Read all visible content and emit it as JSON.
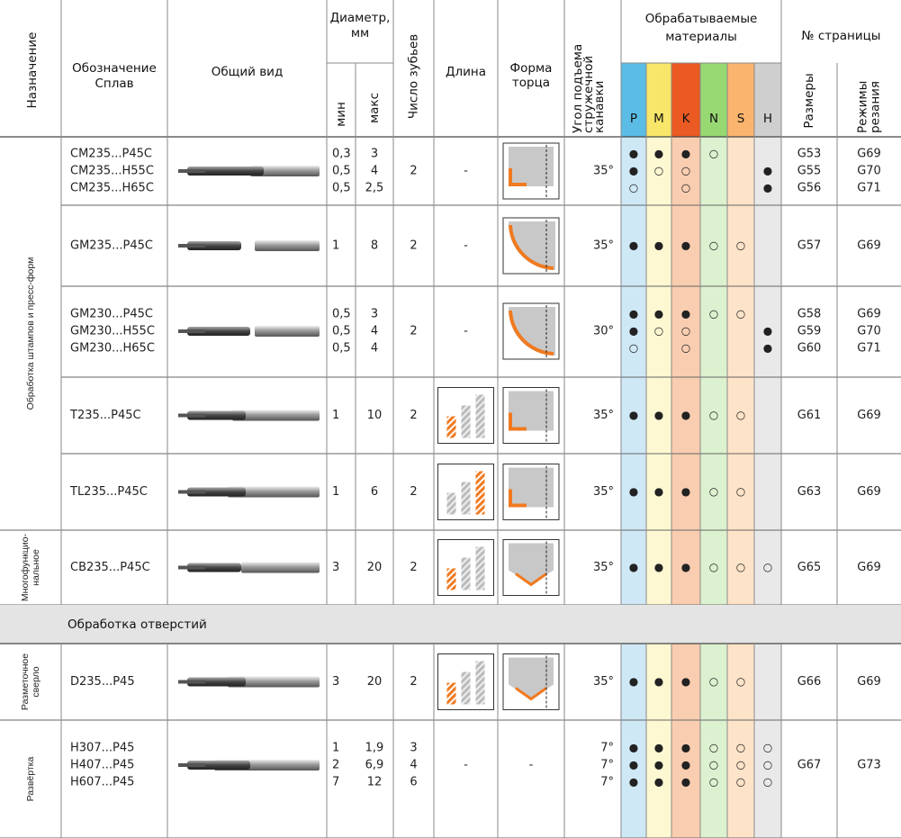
{
  "header": {
    "purpose": "Назначение",
    "designation": [
      "Обозначение",
      "Сплав"
    ],
    "view": "Общий вид",
    "diameter": [
      "Диаметр,",
      "мм"
    ],
    "d_min": "мин",
    "d_max": "макс",
    "teeth": "Число зубьев",
    "length": "Длина",
    "end_form": [
      "Форма",
      "торца"
    ],
    "helix": [
      "Угол подъема",
      "стружечной",
      "канавки"
    ],
    "materials": [
      "Обрабатываемые",
      "материалы"
    ],
    "codes": [
      "P",
      "M",
      "K",
      "N",
      "S",
      "H"
    ],
    "page": "№ страницы",
    "sizes": "Размеры",
    "modes": [
      "Режимы",
      "резания"
    ]
  },
  "blocks": [
    {
      "label": [
        "Обработка штампов и пресс-форм"
      ],
      "rows": [
        {
          "designation": [
            "CM235...P45C",
            "CM235...H55C",
            "CM235...H65C"
          ],
          "d_min": [
            "0,3",
            "0,5",
            "0,5"
          ],
          "d_max": [
            "3",
            "4",
            "2,5"
          ],
          "teeth": [
            "2"
          ],
          "length": "-",
          "end_form": null,
          "angle": [
            "35°"
          ],
          "materials": [
            [
              "●",
              "●",
              "●",
              "○",
              null,
              null
            ],
            [
              "●",
              "○",
              "○",
              null,
              null,
              "●"
            ],
            [
              "○",
              null,
              "○",
              null,
              null,
              "●"
            ]
          ],
          "sizes": [
            "G53",
            "G55",
            "G56"
          ],
          "modes": [
            "G69",
            "G70",
            "G71"
          ]
        },
        {
          "designation": [
            "GM235...P45C"
          ],
          "d_min": [
            "1"
          ],
          "d_max": [
            "8"
          ],
          "teeth": [
            "2"
          ],
          "length": "-",
          "end_form": null,
          "angle": [
            "35°"
          ],
          "materials": [
            [
              "●",
              "●",
              "●",
              "○",
              "○",
              null
            ]
          ],
          "sizes": [
            "G57"
          ],
          "modes": [
            "G69"
          ]
        },
        {
          "designation": [
            "GM230...P45C",
            "GM230...H55C",
            "GM230...H65C"
          ],
          "d_min": [
            "0,5",
            "0,5",
            "0,5"
          ],
          "d_max": [
            "3",
            "4",
            "4"
          ],
          "teeth": [
            "2"
          ],
          "length": "-",
          "end_form": null,
          "angle": [
            "30°"
          ],
          "materials": [
            [
              "●",
              "●",
              "●",
              "○",
              "○",
              null
            ],
            [
              "●",
              "○",
              "○",
              null,
              null,
              "●"
            ],
            [
              "○",
              null,
              "○",
              null,
              null,
              "●"
            ]
          ],
          "sizes": [
            "G58",
            "G59",
            "G60"
          ],
          "modes": [
            "G69",
            "G70",
            "G71"
          ]
        },
        {
          "designation": [
            "T235...P45C"
          ],
          "d_min": [
            "1"
          ],
          "d_max": [
            "10"
          ],
          "teeth": [
            "2"
          ],
          "length": null,
          "end_form": null,
          "angle": [
            "35°"
          ],
          "materials": [
            [
              "●",
              "●",
              "●",
              "○",
              "○",
              null
            ]
          ],
          "sizes": [
            "G61"
          ],
          "modes": [
            "G69"
          ]
        },
        {
          "designation": [
            "TL235...P45C"
          ],
          "d_min": [
            "1"
          ],
          "d_max": [
            "6"
          ],
          "teeth": [
            "2"
          ],
          "length": null,
          "end_form": null,
          "angle": [
            "35°"
          ],
          "materials": [
            [
              "●",
              "●",
              "●",
              "○",
              "○",
              null
            ]
          ],
          "sizes": [
            "G63"
          ],
          "modes": [
            "G69"
          ]
        }
      ]
    },
    {
      "label": [
        "Многофункцио-",
        "нальное"
      ],
      "rows": [
        {
          "designation": [
            "CB235...P45C"
          ],
          "d_min": [
            "3"
          ],
          "d_max": [
            "20"
          ],
          "teeth": [
            "2"
          ],
          "length": null,
          "end_form": null,
          "angle": [
            "35°"
          ],
          "materials": [
            [
              "●",
              "●",
              "●",
              "○",
              "○",
              "○"
            ]
          ],
          "sizes": [
            "G65"
          ],
          "modes": [
            "G69"
          ]
        }
      ]
    },
    {
      "heading": "Обработка отверстий"
    },
    {
      "label": [
        "Разметочное",
        "сверло"
      ],
      "rows": [
        {
          "designation": [
            "D235...P45"
          ],
          "d_min": [
            "3"
          ],
          "d_max": [
            "20"
          ],
          "teeth": [
            "2"
          ],
          "length": null,
          "end_form": null,
          "angle": [
            "35°"
          ],
          "materials": [
            [
              "●",
              "●",
              "●",
              "○",
              "○",
              null
            ]
          ],
          "sizes": [
            "G66"
          ],
          "modes": [
            "G69"
          ]
        }
      ]
    },
    {
      "label": [
        "Развёртка"
      ],
      "rows": [
        {
          "designation": [
            "H307...P45",
            "H407...P45",
            "H607...P45"
          ],
          "d_min": [
            "1",
            "2",
            "7"
          ],
          "d_max": [
            "1,9",
            "6,9",
            "12"
          ],
          "teeth": [
            "3",
            "4",
            "6"
          ],
          "length": "-",
          "end_form": "-",
          "angle": [
            "7°",
            "7°",
            "7°"
          ],
          "materials": [
            [
              "●",
              "●",
              "●",
              "○",
              "○",
              "○"
            ],
            [
              "●",
              "●",
              "●",
              "○",
              "○",
              "○"
            ],
            [
              "●",
              "●",
              "●",
              "○",
              "○",
              "○"
            ]
          ],
          "sizes": [
            "G67"
          ],
          "modes": [
            "G73"
          ]
        }
      ]
    }
  ]
}
